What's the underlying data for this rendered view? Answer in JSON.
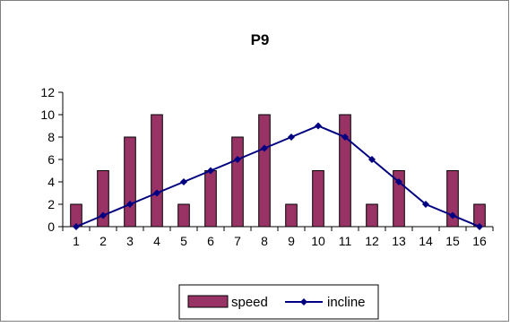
{
  "chart_data": {
    "type": "bar",
    "title": "P9",
    "categories": [
      "1",
      "2",
      "3",
      "4",
      "5",
      "6",
      "7",
      "8",
      "9",
      "10",
      "11",
      "12",
      "13",
      "14",
      "15",
      "16"
    ],
    "series": [
      {
        "name": "speed",
        "type": "bar",
        "color": "#993366",
        "values": [
          2,
          5,
          8,
          10,
          2,
          5,
          8,
          10,
          2,
          5,
          10,
          2,
          5,
          0,
          5,
          2
        ]
      },
      {
        "name": "incline",
        "type": "line",
        "color": "#000080",
        "values": [
          0,
          1,
          2,
          3,
          4,
          5,
          6,
          7,
          8,
          9,
          8,
          6,
          4,
          2,
          1,
          0
        ]
      }
    ],
    "ylim": [
      0,
      12
    ],
    "yticks": [
      0,
      2,
      4,
      6,
      8,
      10,
      12
    ],
    "grid": false,
    "legend_position": "bottom"
  }
}
